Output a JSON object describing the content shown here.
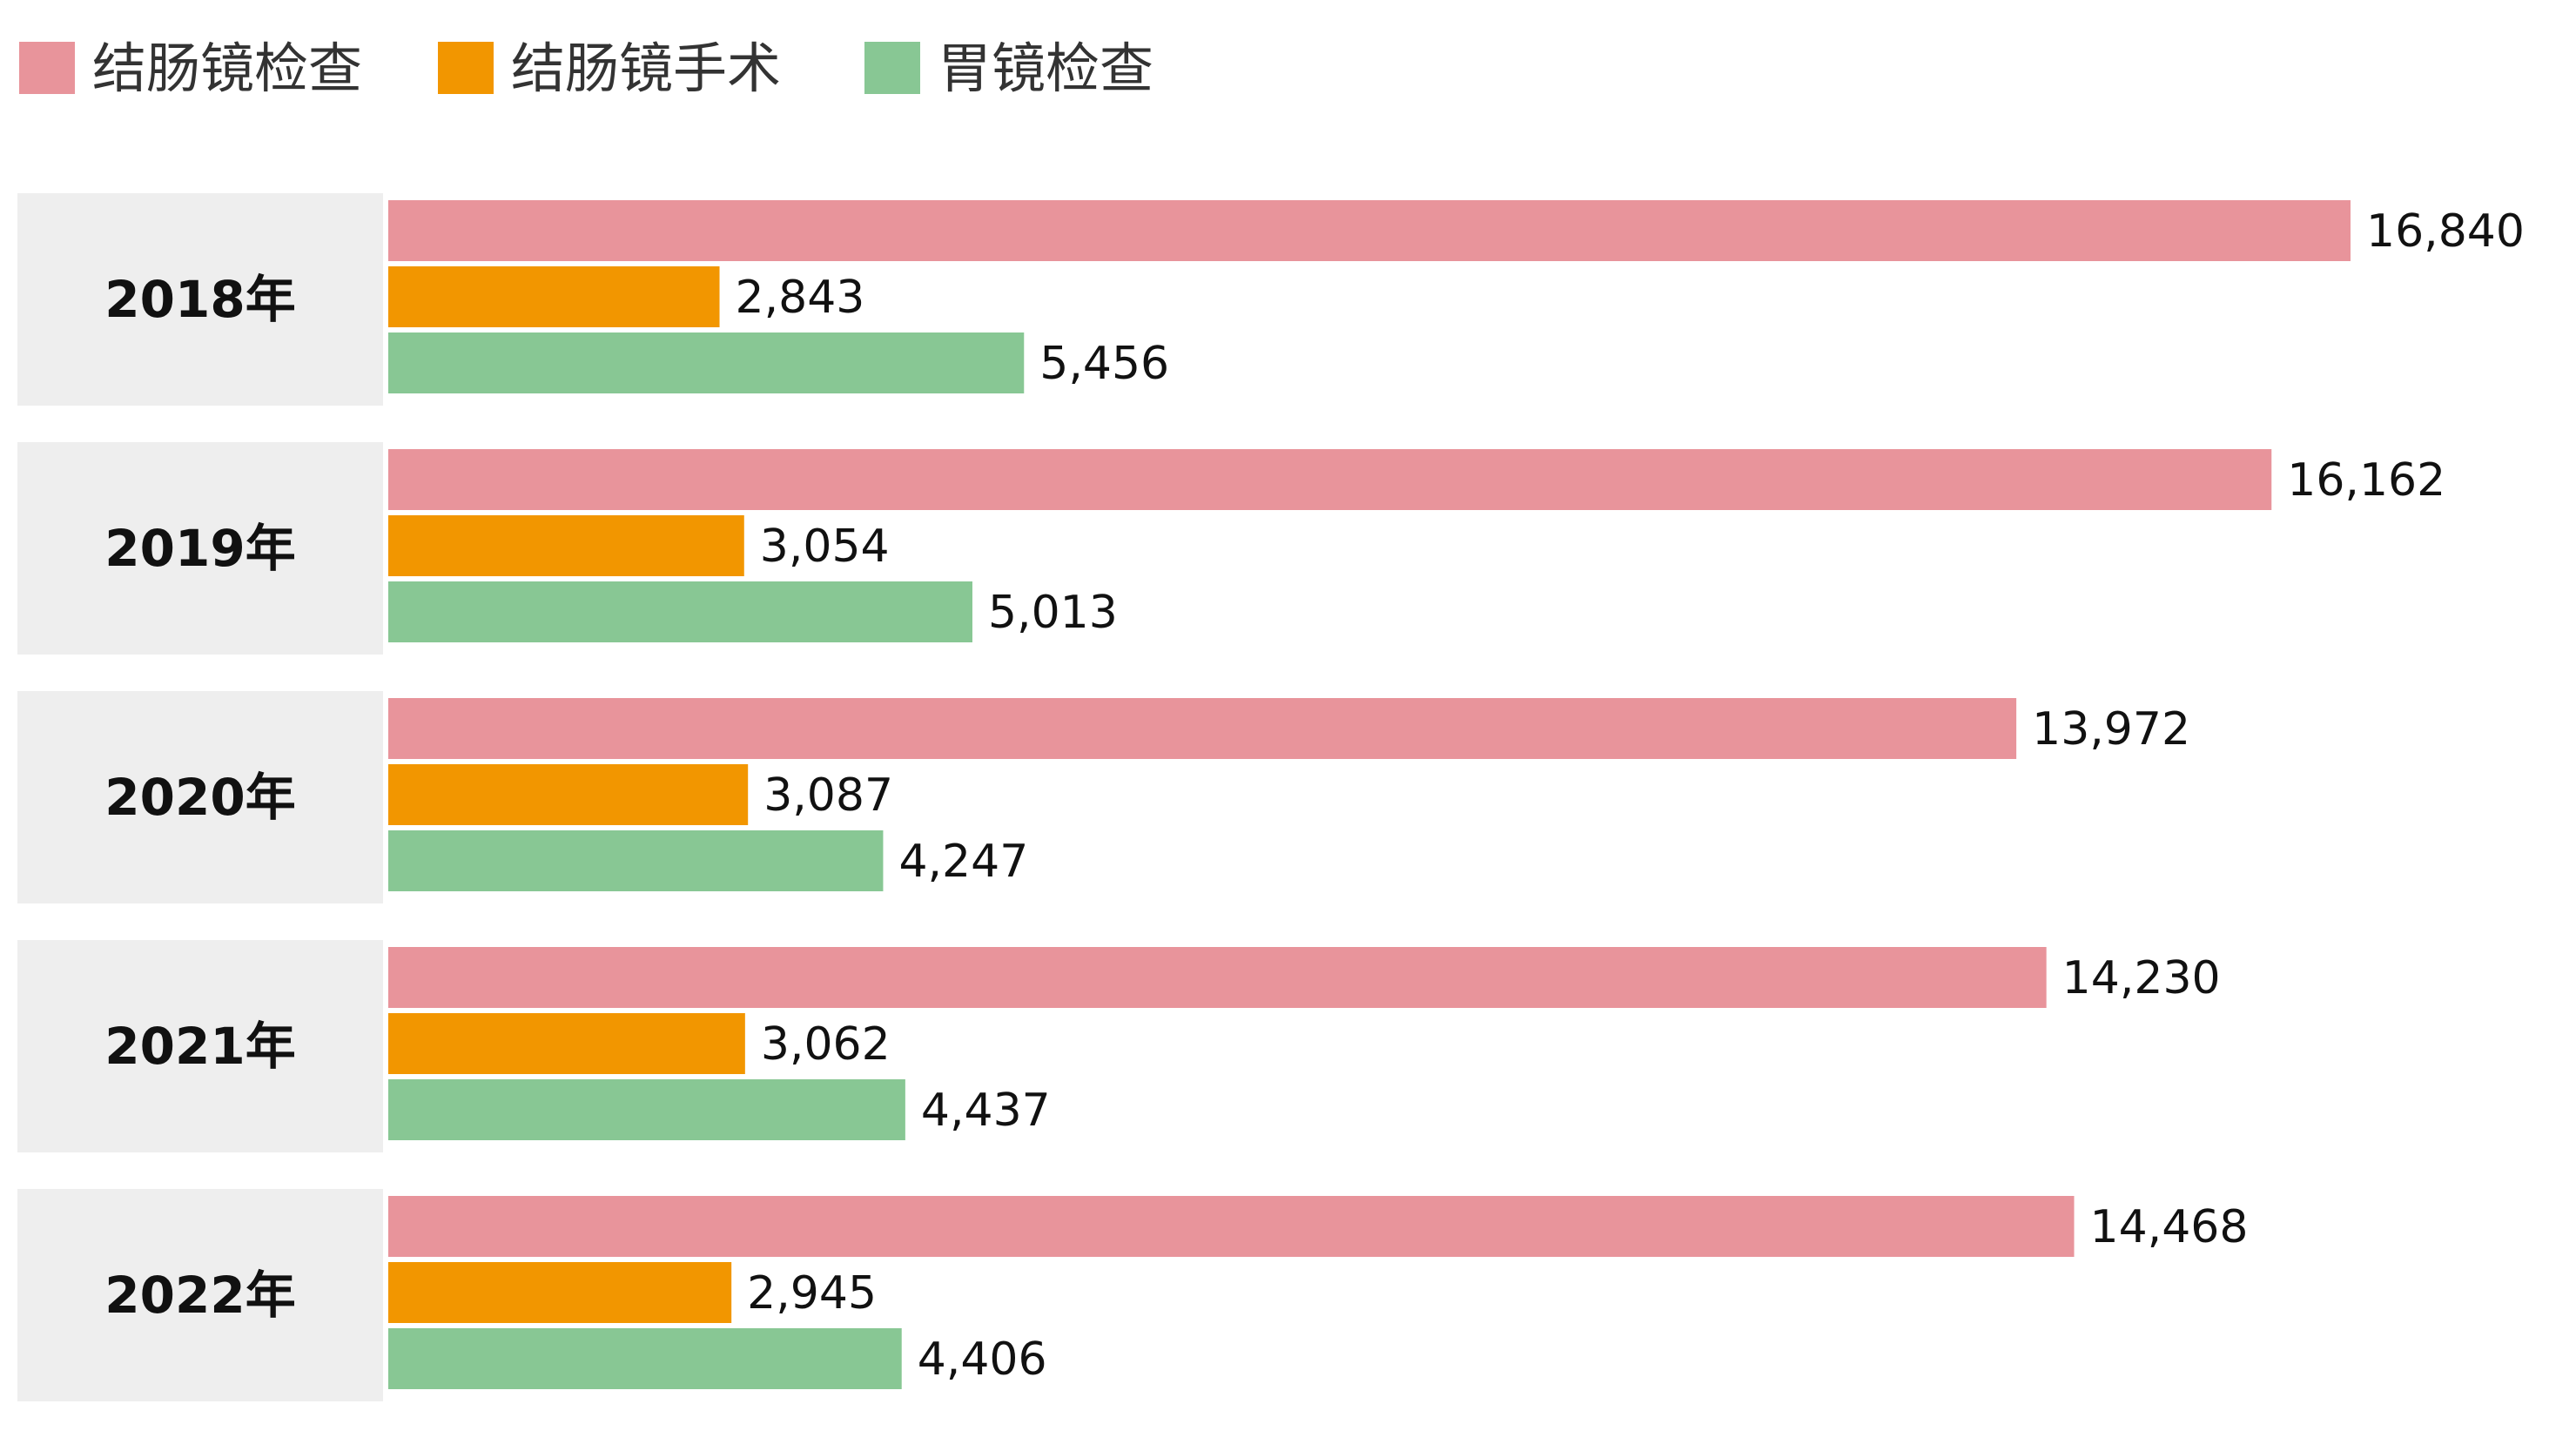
{
  "chart_data": {
    "type": "bar",
    "orientation": "horizontal",
    "categories": [
      "2018年",
      "2019年",
      "2020年",
      "2021年",
      "2022年"
    ],
    "series": [
      {
        "name": "结肠镜检查",
        "color": "#E8949B",
        "values": [
          16840,
          16162,
          13972,
          14230,
          14468
        ]
      },
      {
        "name": "结肠镜手术",
        "color": "#F29600",
        "values": [
          2843,
          3054,
          3087,
          3062,
          2945
        ]
      },
      {
        "name": "胃镜检查",
        "color": "#88C794",
        "values": [
          5456,
          5013,
          4247,
          4437,
          4406
        ]
      }
    ],
    "value_labels": [
      [
        "16,840",
        "2,843",
        "5,456"
      ],
      [
        "16,162",
        "3,054",
        "5,013"
      ],
      [
        "13,972",
        "3,087",
        "4,247"
      ],
      [
        "14,230",
        "3,062",
        "4,437"
      ],
      [
        "14,468",
        "2,945",
        "4,406"
      ]
    ],
    "xlim": [
      0,
      17000
    ],
    "legend_position": "top-left",
    "grid": false,
    "category_band_color": "#EEEEEE"
  }
}
